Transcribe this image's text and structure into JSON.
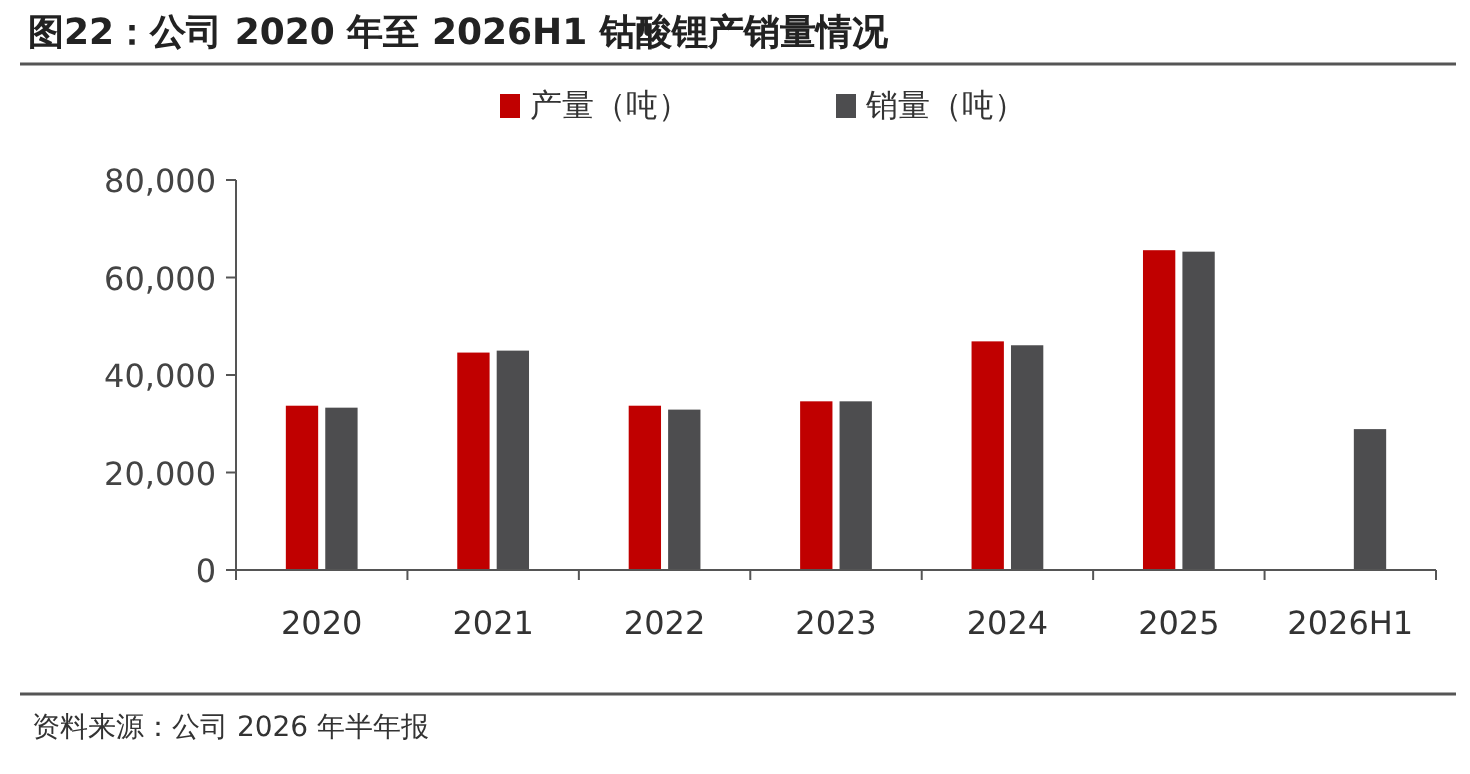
{
  "chart_data": {
    "type": "bar",
    "title": "图22：公司 2020 年至 2026H1 钴酸锂产销量情况",
    "categories": [
      "2020",
      "2021",
      "2022",
      "2023",
      "2024",
      "2025",
      "2026H1"
    ],
    "series": [
      {
        "name": "产量（吨）",
        "color": "#c00000",
        "values": [
          33700,
          44600,
          33700,
          34600,
          46900,
          65600,
          null
        ]
      },
      {
        "name": "销量（吨）",
        "color": "#4d4d4f",
        "values": [
          33300,
          45000,
          32900,
          34600,
          46100,
          65300,
          28900
        ]
      }
    ],
    "ylim": [
      0,
      80000
    ],
    "yticks": [
      {
        "value": 0,
        "label": "0"
      },
      {
        "value": 20000,
        "label": "20,000"
      },
      {
        "value": 40000,
        "label": "40,000"
      },
      {
        "value": 60000,
        "label": "60,000"
      },
      {
        "value": 80000,
        "label": "80,000"
      }
    ],
    "legend": "top",
    "grid": false,
    "annotations": [
      "资料来源：公司 2026 年半年报"
    ]
  }
}
